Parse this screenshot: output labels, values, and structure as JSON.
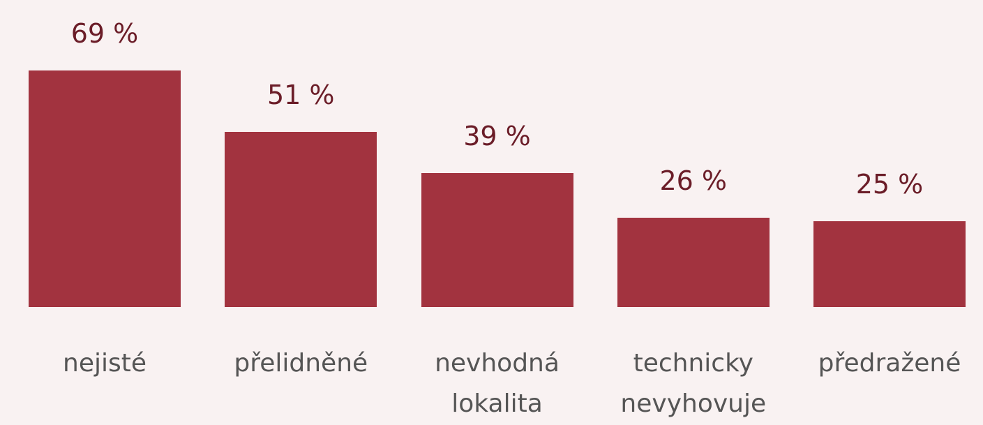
{
  "chart_data": {
    "type": "bar",
    "categories": [
      "nejisté",
      "přelidněné",
      "nevhodná lokalita",
      "technicky nevyhovuje",
      "předražené"
    ],
    "values": [
      69,
      51,
      39,
      26,
      25
    ],
    "value_labels": [
      "69 %",
      "51 %",
      "39 %",
      "26 %",
      "25 %"
    ],
    "color": "#a2333f",
    "ylim": [
      0,
      70
    ]
  }
}
